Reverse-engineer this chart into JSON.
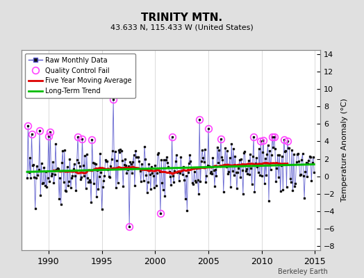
{
  "title": "TRINITY MTN.",
  "subtitle": "43.633 N, 115.433 W (United States)",
  "ylabel": "Temperature Anomaly (°C)",
  "watermark": "Berkeley Earth",
  "xlim": [
    1987.5,
    2015.5
  ],
  "ylim": [
    -8.5,
    14.5
  ],
  "yticks": [
    -8,
    -6,
    -4,
    -2,
    0,
    2,
    4,
    6,
    8,
    10,
    12,
    14
  ],
  "xticks": [
    1990,
    1995,
    2000,
    2005,
    2010,
    2015
  ],
  "bg_color": "#e0e0e0",
  "plot_bg_color": "#ffffff",
  "raw_color": "#5555cc",
  "ma_color": "#dd0000",
  "trend_color": "#00bb00",
  "qc_color": "#ff44ff",
  "seed": 99
}
